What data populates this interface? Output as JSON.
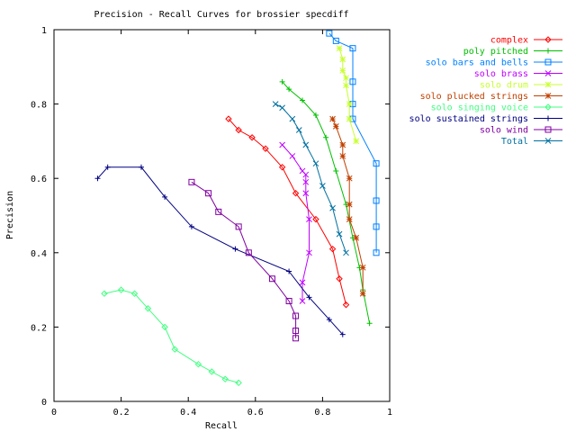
{
  "chart_data": {
    "type": "line",
    "title": "Precision - Recall Curves for brossier specdiff",
    "xlabel": "Recall",
    "ylabel": "Precision",
    "xlim": [
      0,
      1
    ],
    "ylim": [
      0,
      1
    ],
    "xticks": [
      "0",
      "0.2",
      "0.4",
      "0.6",
      "0.8",
      "1"
    ],
    "yticks": [
      "0",
      "0.2",
      "0.4",
      "0.6",
      "0.8",
      "1"
    ],
    "grid": false,
    "legend_position": "top-right, outside plot",
    "series": [
      {
        "name": "complex",
        "color": "#ff0000",
        "marker": "diamond",
        "points": [
          [
            0.52,
            0.76
          ],
          [
            0.55,
            0.73
          ],
          [
            0.59,
            0.71
          ],
          [
            0.63,
            0.68
          ],
          [
            0.68,
            0.63
          ],
          [
            0.72,
            0.56
          ],
          [
            0.78,
            0.49
          ],
          [
            0.83,
            0.41
          ],
          [
            0.85,
            0.33
          ],
          [
            0.87,
            0.26
          ]
        ]
      },
      {
        "name": "poly pitched",
        "color": "#00c000",
        "marker": "plus",
        "points": [
          [
            0.68,
            0.86
          ],
          [
            0.7,
            0.84
          ],
          [
            0.74,
            0.81
          ],
          [
            0.78,
            0.77
          ],
          [
            0.81,
            0.71
          ],
          [
            0.84,
            0.62
          ],
          [
            0.87,
            0.53
          ],
          [
            0.89,
            0.44
          ],
          [
            0.91,
            0.36
          ],
          [
            0.92,
            0.3
          ],
          [
            0.94,
            0.21
          ]
        ]
      },
      {
        "name": "solo bars and bells",
        "color": "#0080ff",
        "marker": "square",
        "points": [
          [
            0.82,
            0.99
          ],
          [
            0.84,
            0.97
          ],
          [
            0.89,
            0.95
          ],
          [
            0.89,
            0.86
          ],
          [
            0.89,
            0.8
          ],
          [
            0.89,
            0.76
          ],
          [
            0.96,
            0.64
          ],
          [
            0.96,
            0.54
          ],
          [
            0.96,
            0.47
          ],
          [
            0.96,
            0.4
          ]
        ]
      },
      {
        "name": "solo brass",
        "color": "#c000ff",
        "marker": "cross",
        "points": [
          [
            0.68,
            0.69
          ],
          [
            0.71,
            0.66
          ],
          [
            0.74,
            0.62
          ],
          [
            0.75,
            0.61
          ],
          [
            0.75,
            0.59
          ],
          [
            0.75,
            0.56
          ],
          [
            0.76,
            0.49
          ],
          [
            0.76,
            0.4
          ],
          [
            0.74,
            0.32
          ],
          [
            0.74,
            0.27
          ]
        ]
      },
      {
        "name": "solo drum",
        "color": "#c8ff30",
        "marker": "star",
        "points": [
          [
            0.85,
            0.95
          ],
          [
            0.86,
            0.92
          ],
          [
            0.86,
            0.89
          ],
          [
            0.87,
            0.87
          ],
          [
            0.87,
            0.85
          ],
          [
            0.88,
            0.8
          ],
          [
            0.88,
            0.76
          ],
          [
            0.9,
            0.7
          ]
        ]
      },
      {
        "name": "solo plucked strings",
        "color": "#c04000",
        "marker": "asterisk",
        "points": [
          [
            0.83,
            0.76
          ],
          [
            0.84,
            0.74
          ],
          [
            0.86,
            0.69
          ],
          [
            0.86,
            0.66
          ],
          [
            0.88,
            0.6
          ],
          [
            0.88,
            0.53
          ],
          [
            0.88,
            0.49
          ],
          [
            0.9,
            0.44
          ],
          [
            0.92,
            0.36
          ],
          [
            0.92,
            0.29
          ]
        ]
      },
      {
        "name": "solo singing voice",
        "color": "#40ff80",
        "marker": "diamond",
        "points": [
          [
            0.15,
            0.29
          ],
          [
            0.2,
            0.3
          ],
          [
            0.24,
            0.29
          ],
          [
            0.28,
            0.25
          ],
          [
            0.33,
            0.2
          ],
          [
            0.36,
            0.14
          ],
          [
            0.43,
            0.1
          ],
          [
            0.47,
            0.08
          ],
          [
            0.51,
            0.06
          ],
          [
            0.55,
            0.05
          ]
        ]
      },
      {
        "name": "solo sustained strings",
        "color": "#000080",
        "marker": "plus",
        "points": [
          [
            0.13,
            0.6
          ],
          [
            0.16,
            0.63
          ],
          [
            0.26,
            0.63
          ],
          [
            0.33,
            0.55
          ],
          [
            0.41,
            0.47
          ],
          [
            0.54,
            0.41
          ],
          [
            0.7,
            0.35
          ],
          [
            0.76,
            0.28
          ],
          [
            0.82,
            0.22
          ],
          [
            0.86,
            0.18
          ]
        ]
      },
      {
        "name": "solo wind",
        "color": "#8000a0",
        "marker": "square",
        "points": [
          [
            0.41,
            0.59
          ],
          [
            0.46,
            0.56
          ],
          [
            0.49,
            0.51
          ],
          [
            0.55,
            0.47
          ],
          [
            0.58,
            0.4
          ],
          [
            0.65,
            0.33
          ],
          [
            0.7,
            0.27
          ],
          [
            0.72,
            0.23
          ],
          [
            0.72,
            0.19
          ],
          [
            0.72,
            0.17
          ]
        ]
      },
      {
        "name": "Total",
        "color": "#0070a0",
        "marker": "cross",
        "points": [
          [
            0.66,
            0.8
          ],
          [
            0.68,
            0.79
          ],
          [
            0.71,
            0.76
          ],
          [
            0.73,
            0.73
          ],
          [
            0.75,
            0.69
          ],
          [
            0.78,
            0.64
          ],
          [
            0.8,
            0.58
          ],
          [
            0.83,
            0.52
          ],
          [
            0.85,
            0.45
          ],
          [
            0.87,
            0.4
          ]
        ]
      }
    ]
  }
}
